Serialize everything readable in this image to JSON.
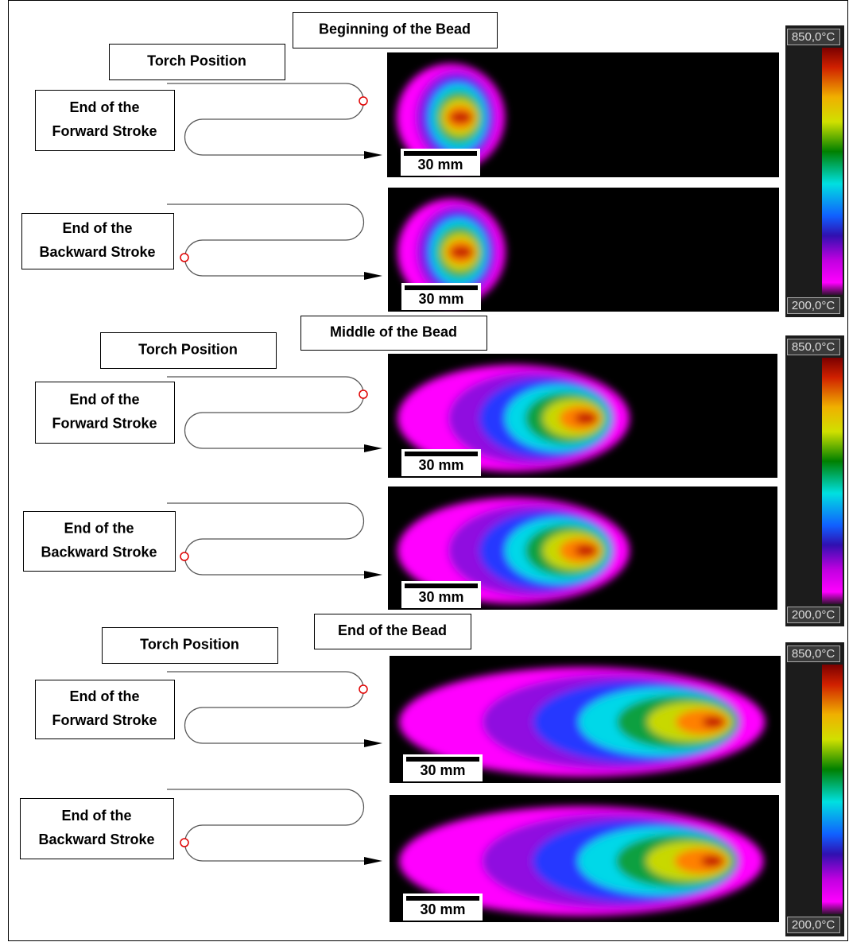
{
  "sections": [
    {
      "title": "Beginning of the Bead",
      "torch_label": "Torch Position",
      "rows": [
        {
          "label": [
            "End of the",
            "Forward Stroke"
          ],
          "scale_label": "30 mm"
        },
        {
          "label": [
            "End of the",
            "Backward Stroke"
          ],
          "scale_label": "30 mm"
        }
      ],
      "colorbar": {
        "max_label": "850,0°C",
        "min_label": "200,0°C"
      }
    },
    {
      "title": "Middle of the Bead",
      "torch_label": "Torch Position",
      "rows": [
        {
          "label": [
            "End of the",
            "Forward Stroke"
          ],
          "scale_label": "30 mm"
        },
        {
          "label": [
            "End of the",
            "Backward Stroke"
          ],
          "scale_label": "30 mm"
        }
      ],
      "colorbar": {
        "max_label": "850,0°C",
        "min_label": "200,0°C"
      }
    },
    {
      "title": "End of the Bead",
      "torch_label": "Torch Position",
      "rows": [
        {
          "label": [
            "End of the",
            "Forward Stroke"
          ],
          "scale_label": "30 mm"
        },
        {
          "label": [
            "End of the",
            "Backward Stroke"
          ],
          "scale_label": "30 mm"
        }
      ],
      "colorbar": {
        "max_label": "850,0°C",
        "min_label": "200,0°C"
      }
    }
  ]
}
